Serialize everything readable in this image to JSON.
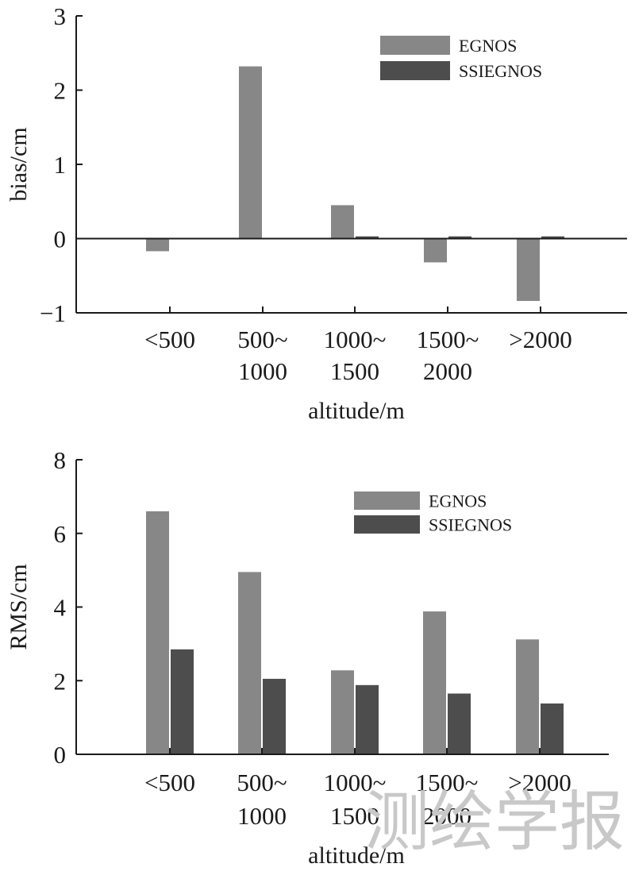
{
  "chart_data": [
    {
      "type": "bar",
      "categories": [
        [
          "<500"
        ],
        [
          "500~",
          "1000"
        ],
        [
          "1000~",
          "1500"
        ],
        [
          "1500~",
          "2000"
        ],
        [
          ">2000"
        ]
      ],
      "series": [
        {
          "name": "EGNOS",
          "color": "#878787",
          "values": [
            -0.17,
            2.32,
            0.45,
            -0.32,
            -0.84
          ]
        },
        {
          "name": "SSIEGNOS",
          "color": "#4d4d4d",
          "values": [
            0.0,
            0.0,
            0.03,
            0.03,
            0.03
          ]
        }
      ],
      "xlabel": "altitude/m",
      "ylabel": "bias/cm",
      "ylim": [
        -1,
        3
      ],
      "yticks": [
        -1,
        0,
        1,
        2,
        3
      ],
      "ytick_labels": [
        "−1",
        "0",
        "1",
        "2",
        "3"
      ],
      "legend_position": "top-right"
    },
    {
      "type": "bar",
      "categories": [
        [
          "<500"
        ],
        [
          "500~",
          "1000"
        ],
        [
          "1000~",
          "1500"
        ],
        [
          "1500~",
          "2000"
        ],
        [
          ">2000"
        ]
      ],
      "series": [
        {
          "name": "EGNOS",
          "color": "#878787",
          "values": [
            6.6,
            4.95,
            2.28,
            3.88,
            3.12
          ]
        },
        {
          "name": "SSIEGNOS",
          "color": "#4d4d4d",
          "values": [
            2.85,
            2.05,
            1.88,
            1.65,
            1.38
          ]
        }
      ],
      "xlabel": "altitude/m",
      "ylabel": "RMS/cm",
      "ylim": [
        0,
        8
      ],
      "yticks": [
        0,
        2,
        4,
        6,
        8
      ],
      "ytick_labels": [
        "0",
        "2",
        "4",
        "6",
        "8"
      ],
      "legend_position": "top-right"
    }
  ],
  "watermark": "测绘学报"
}
